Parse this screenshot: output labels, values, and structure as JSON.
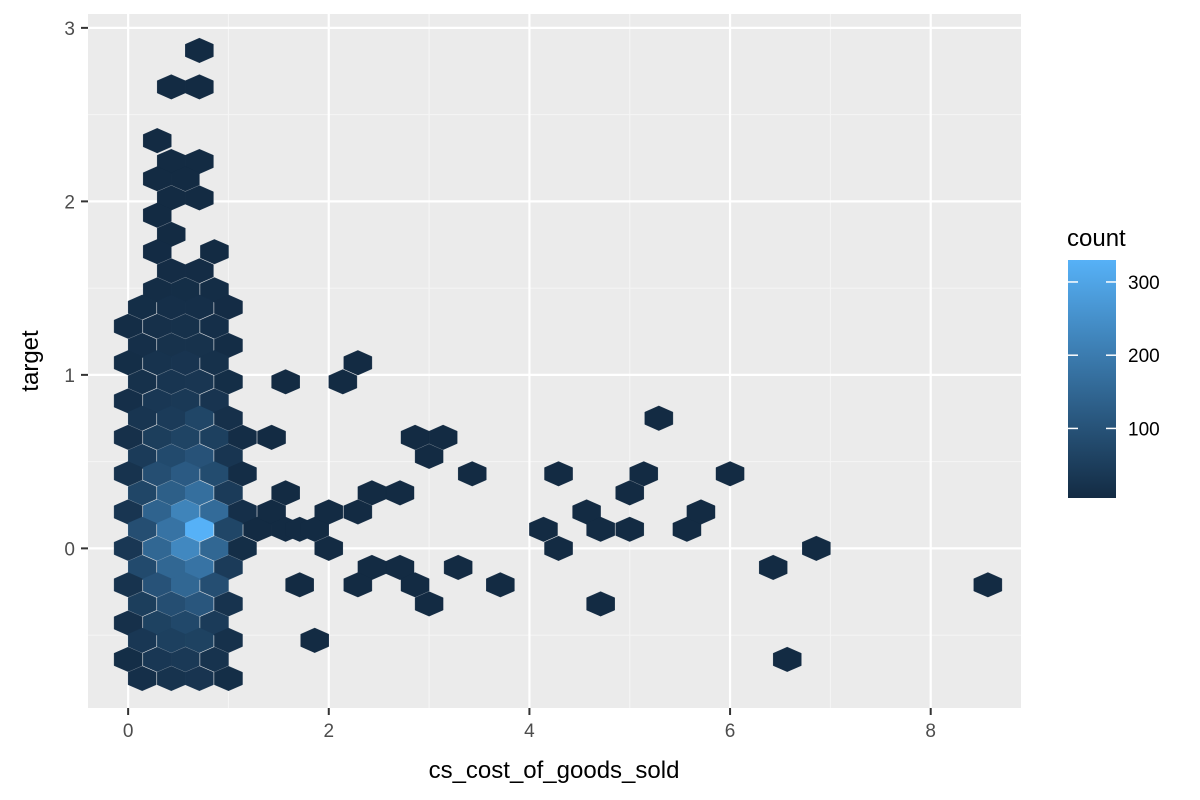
{
  "chart_data": {
    "type": "heatmap",
    "subtype": "hexbin",
    "xlabel": "cs_cost_of_goods_sold",
    "ylabel": "target",
    "xlim": [
      -0.4,
      8.9
    ],
    "ylim": [
      -0.92,
      3.08
    ],
    "x_ticks": [
      {
        "value": 0,
        "label": "0"
      },
      {
        "value": 2,
        "label": "2"
      },
      {
        "value": 4,
        "label": "4"
      },
      {
        "value": 6,
        "label": "6"
      },
      {
        "value": 8,
        "label": "8"
      }
    ],
    "y_ticks": [
      {
        "value": 0,
        "label": "0"
      },
      {
        "value": 1,
        "label": "1"
      },
      {
        "value": 2,
        "label": "2"
      },
      {
        "value": 3,
        "label": "3"
      }
    ],
    "grid": true,
    "legend": {
      "title": "count",
      "position": "right",
      "min": 5,
      "max": 330,
      "ticks": [
        {
          "value": 100,
          "label": "100"
        },
        {
          "value": 200,
          "label": "200"
        },
        {
          "value": 300,
          "label": "300"
        }
      ],
      "color_low": "#132b43",
      "color_high": "#56b1f7"
    },
    "hex_width": 0.28,
    "hex_height": 0.142,
    "bins": [
      {
        "x": 0.71,
        "y": 2.87,
        "count": 5
      },
      {
        "x": 0.43,
        "y": 2.66,
        "count": 5
      },
      {
        "x": 0.71,
        "y": 2.66,
        "count": 5
      },
      {
        "x": 0.29,
        "y": 2.35,
        "count": 5
      },
      {
        "x": 0.43,
        "y": 2.23,
        "count": 5
      },
      {
        "x": 0.71,
        "y": 2.23,
        "count": 5
      },
      {
        "x": 0.29,
        "y": 2.13,
        "count": 5
      },
      {
        "x": 0.57,
        "y": 2.13,
        "count": 5
      },
      {
        "x": 0.43,
        "y": 2.02,
        "count": 5
      },
      {
        "x": 0.71,
        "y": 2.02,
        "count": 5
      },
      {
        "x": 0.29,
        "y": 1.92,
        "count": 5
      },
      {
        "x": 0.43,
        "y": 1.81,
        "count": 5
      },
      {
        "x": 0.29,
        "y": 1.71,
        "count": 6
      },
      {
        "x": 0.86,
        "y": 1.71,
        "count": 5
      },
      {
        "x": 0.43,
        "y": 1.6,
        "count": 8
      },
      {
        "x": 0.71,
        "y": 1.6,
        "count": 8
      },
      {
        "x": 0.29,
        "y": 1.49,
        "count": 10
      },
      {
        "x": 0.57,
        "y": 1.49,
        "count": 12
      },
      {
        "x": 0.86,
        "y": 1.49,
        "count": 10
      },
      {
        "x": 0.14,
        "y": 1.39,
        "count": 12
      },
      {
        "x": 0.43,
        "y": 1.39,
        "count": 15
      },
      {
        "x": 0.71,
        "y": 1.39,
        "count": 15
      },
      {
        "x": 1.0,
        "y": 1.39,
        "count": 8
      },
      {
        "x": -0.0,
        "y": 1.28,
        "count": 10
      },
      {
        "x": 0.29,
        "y": 1.28,
        "count": 18
      },
      {
        "x": 0.57,
        "y": 1.28,
        "count": 20
      },
      {
        "x": 0.86,
        "y": 1.28,
        "count": 15
      },
      {
        "x": 0.14,
        "y": 1.17,
        "count": 15
      },
      {
        "x": 0.43,
        "y": 1.17,
        "count": 22
      },
      {
        "x": 0.71,
        "y": 1.17,
        "count": 22
      },
      {
        "x": 1.0,
        "y": 1.17,
        "count": 10
      },
      {
        "x": -0.0,
        "y": 1.07,
        "count": 12
      },
      {
        "x": 0.29,
        "y": 1.07,
        "count": 25
      },
      {
        "x": 0.57,
        "y": 1.07,
        "count": 28
      },
      {
        "x": 0.86,
        "y": 1.07,
        "count": 20
      },
      {
        "x": 0.14,
        "y": 0.96,
        "count": 20
      },
      {
        "x": 0.43,
        "y": 0.96,
        "count": 30
      },
      {
        "x": 0.71,
        "y": 0.96,
        "count": 32
      },
      {
        "x": 1.0,
        "y": 0.96,
        "count": 12
      },
      {
        "x": -0.0,
        "y": 0.85,
        "count": 15
      },
      {
        "x": 0.29,
        "y": 0.85,
        "count": 35
      },
      {
        "x": 0.57,
        "y": 0.85,
        "count": 40
      },
      {
        "x": 0.86,
        "y": 0.85,
        "count": 28
      },
      {
        "x": 0.14,
        "y": 0.75,
        "count": 30
      },
      {
        "x": 0.43,
        "y": 0.75,
        "count": 45
      },
      {
        "x": 0.71,
        "y": 0.75,
        "count": 70
      },
      {
        "x": 1.0,
        "y": 0.75,
        "count": 18
      },
      {
        "x": -0.0,
        "y": 0.64,
        "count": 18
      },
      {
        "x": 0.29,
        "y": 0.64,
        "count": 50
      },
      {
        "x": 0.57,
        "y": 0.64,
        "count": 65
      },
      {
        "x": 0.86,
        "y": 0.64,
        "count": 55
      },
      {
        "x": 1.14,
        "y": 0.64,
        "count": 10
      },
      {
        "x": 1.43,
        "y": 0.64,
        "count": 5
      },
      {
        "x": 0.14,
        "y": 0.53,
        "count": 45
      },
      {
        "x": 0.43,
        "y": 0.53,
        "count": 80
      },
      {
        "x": 0.71,
        "y": 0.53,
        "count": 100
      },
      {
        "x": 1.0,
        "y": 0.53,
        "count": 30
      },
      {
        "x": -0.0,
        "y": 0.43,
        "count": 25
      },
      {
        "x": 0.29,
        "y": 0.43,
        "count": 90
      },
      {
        "x": 0.57,
        "y": 0.43,
        "count": 120
      },
      {
        "x": 0.86,
        "y": 0.43,
        "count": 85
      },
      {
        "x": 1.14,
        "y": 0.43,
        "count": 10
      },
      {
        "x": 0.14,
        "y": 0.32,
        "count": 70
      },
      {
        "x": 0.43,
        "y": 0.32,
        "count": 130
      },
      {
        "x": 0.71,
        "y": 0.32,
        "count": 170
      },
      {
        "x": 1.0,
        "y": 0.32,
        "count": 45
      },
      {
        "x": -0.0,
        "y": 0.21,
        "count": 30
      },
      {
        "x": 0.29,
        "y": 0.21,
        "count": 140
      },
      {
        "x": 0.57,
        "y": 0.21,
        "count": 220
      },
      {
        "x": 0.86,
        "y": 0.21,
        "count": 160
      },
      {
        "x": 1.14,
        "y": 0.21,
        "count": 15
      },
      {
        "x": 0.14,
        "y": 0.11,
        "count": 90
      },
      {
        "x": 0.43,
        "y": 0.11,
        "count": 180
      },
      {
        "x": 0.71,
        "y": 0.11,
        "count": 330
      },
      {
        "x": 1.0,
        "y": 0.11,
        "count": 70
      },
      {
        "x": -0.0,
        "y": -0.0,
        "count": 35
      },
      {
        "x": 0.29,
        "y": -0.0,
        "count": 150
      },
      {
        "x": 0.57,
        "y": -0.0,
        "count": 230
      },
      {
        "x": 0.86,
        "y": -0.0,
        "count": 150
      },
      {
        "x": 1.14,
        "y": -0.0,
        "count": 12
      },
      {
        "x": 0.14,
        "y": -0.11,
        "count": 80
      },
      {
        "x": 0.43,
        "y": -0.11,
        "count": 150
      },
      {
        "x": 0.71,
        "y": -0.11,
        "count": 180
      },
      {
        "x": 1.0,
        "y": -0.11,
        "count": 45
      },
      {
        "x": -0.0,
        "y": -0.21,
        "count": 25
      },
      {
        "x": 0.29,
        "y": -0.21,
        "count": 100
      },
      {
        "x": 0.57,
        "y": -0.21,
        "count": 150
      },
      {
        "x": 0.86,
        "y": -0.21,
        "count": 90
      },
      {
        "x": 0.14,
        "y": -0.32,
        "count": 50
      },
      {
        "x": 0.43,
        "y": -0.32,
        "count": 90
      },
      {
        "x": 0.71,
        "y": -0.32,
        "count": 110
      },
      {
        "x": 1.0,
        "y": -0.32,
        "count": 25
      },
      {
        "x": -0.0,
        "y": -0.43,
        "count": 18
      },
      {
        "x": 0.29,
        "y": -0.43,
        "count": 60
      },
      {
        "x": 0.57,
        "y": -0.43,
        "count": 75
      },
      {
        "x": 0.86,
        "y": -0.43,
        "count": 45
      },
      {
        "x": 0.14,
        "y": -0.53,
        "count": 35
      },
      {
        "x": 0.43,
        "y": -0.53,
        "count": 55
      },
      {
        "x": 0.71,
        "y": -0.53,
        "count": 60
      },
      {
        "x": 1.0,
        "y": -0.53,
        "count": 20
      },
      {
        "x": -0.0,
        "y": -0.64,
        "count": 12
      },
      {
        "x": 0.29,
        "y": -0.64,
        "count": 35
      },
      {
        "x": 0.57,
        "y": -0.64,
        "count": 40
      },
      {
        "x": 0.86,
        "y": -0.64,
        "count": 25
      },
      {
        "x": 0.14,
        "y": -0.75,
        "count": 15
      },
      {
        "x": 0.43,
        "y": -0.75,
        "count": 25
      },
      {
        "x": 0.71,
        "y": -0.75,
        "count": 28
      },
      {
        "x": 1.0,
        "y": -0.75,
        "count": 12
      },
      {
        "x": 1.29,
        "y": 0.11,
        "count": 5
      },
      {
        "x": 1.43,
        "y": 0.21,
        "count": 5
      },
      {
        "x": 1.57,
        "y": 0.11,
        "count": 5
      },
      {
        "x": 1.57,
        "y": 0.32,
        "count": 5
      },
      {
        "x": 1.71,
        "y": 0.11,
        "count": 5
      },
      {
        "x": 1.86,
        "y": 0.11,
        "count": 5
      },
      {
        "x": 2.0,
        "y": 0.21,
        "count": 5
      },
      {
        "x": 2.0,
        "y": -0.0,
        "count": 5
      },
      {
        "x": 2.29,
        "y": 0.21,
        "count": 5
      },
      {
        "x": 2.43,
        "y": 0.32,
        "count": 5
      },
      {
        "x": 2.71,
        "y": 0.32,
        "count": 5
      },
      {
        "x": 2.43,
        "y": -0.11,
        "count": 5
      },
      {
        "x": 2.71,
        "y": -0.11,
        "count": 5
      },
      {
        "x": 2.29,
        "y": -0.21,
        "count": 5
      },
      {
        "x": 2.86,
        "y": -0.21,
        "count": 5
      },
      {
        "x": 2.86,
        "y": 0.64,
        "count": 5
      },
      {
        "x": 3.14,
        "y": 0.64,
        "count": 5
      },
      {
        "x": 3.0,
        "y": 0.53,
        "count": 5
      },
      {
        "x": 3.0,
        "y": -0.32,
        "count": 5
      },
      {
        "x": 3.29,
        "y": -0.11,
        "count": 5
      },
      {
        "x": 3.43,
        "y": 0.43,
        "count": 5
      },
      {
        "x": 3.71,
        "y": -0.21,
        "count": 5
      },
      {
        "x": 1.57,
        "y": 0.96,
        "count": 5
      },
      {
        "x": 2.14,
        "y": 0.96,
        "count": 5
      },
      {
        "x": 2.29,
        "y": 1.07,
        "count": 5
      },
      {
        "x": 1.71,
        "y": -0.21,
        "count": 5
      },
      {
        "x": 1.86,
        "y": -0.53,
        "count": 5
      },
      {
        "x": 4.14,
        "y": 0.11,
        "count": 5
      },
      {
        "x": 4.29,
        "y": -0.0,
        "count": 5
      },
      {
        "x": 4.29,
        "y": 0.43,
        "count": 5
      },
      {
        "x": 4.57,
        "y": 0.21,
        "count": 5
      },
      {
        "x": 4.71,
        "y": 0.11,
        "count": 5
      },
      {
        "x": 4.71,
        "y": -0.32,
        "count": 5
      },
      {
        "x": 5.0,
        "y": 0.11,
        "count": 5
      },
      {
        "x": 5.0,
        "y": 0.32,
        "count": 5
      },
      {
        "x": 5.14,
        "y": 0.43,
        "count": 5
      },
      {
        "x": 5.29,
        "y": 0.75,
        "count": 5
      },
      {
        "x": 5.57,
        "y": 0.11,
        "count": 5
      },
      {
        "x": 5.71,
        "y": 0.21,
        "count": 5
      },
      {
        "x": 6.0,
        "y": 0.43,
        "count": 5
      },
      {
        "x": 6.43,
        "y": -0.11,
        "count": 5
      },
      {
        "x": 6.57,
        "y": -0.64,
        "count": 5
      },
      {
        "x": 6.86,
        "y": -0.0,
        "count": 5
      },
      {
        "x": 8.57,
        "y": -0.21,
        "count": 5
      }
    ]
  }
}
